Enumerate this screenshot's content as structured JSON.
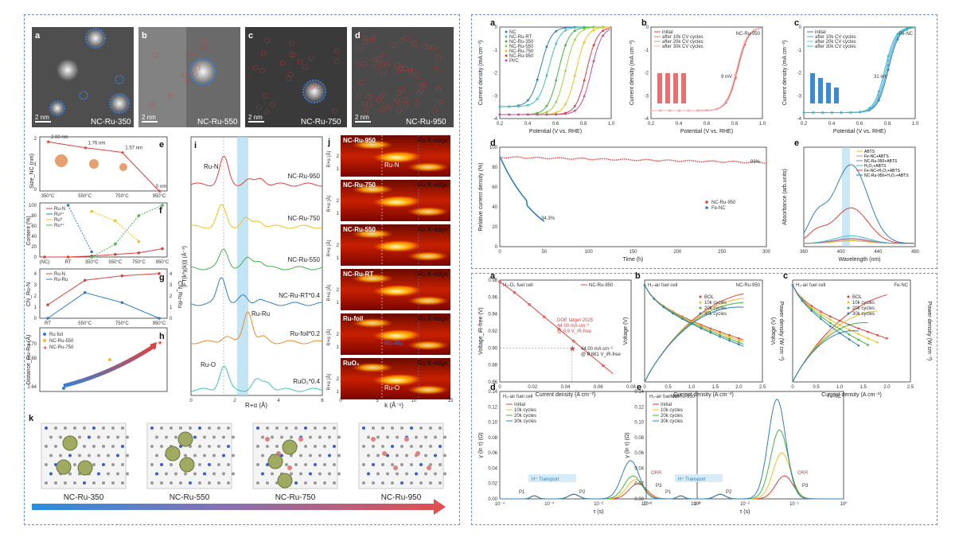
{
  "left": {
    "tem": [
      {
        "letter": "a",
        "label": "NC-Ru-350",
        "scale": "2 nm"
      },
      {
        "letter": "b",
        "label": "NC-Ru-550",
        "scale": "2 nm"
      },
      {
        "letter": "c",
        "label": "NC-Ru-750",
        "scale": "2 nm"
      },
      {
        "letter": "d",
        "label": "NC-Ru-950",
        "scale": "2 nm"
      }
    ],
    "e": {
      "letter": "e",
      "ylabel": "Size_NC (nm)",
      "points": [
        {
          "x": "350°C",
          "v": 2.0,
          "label": "2.00 nm"
        },
        {
          "x": "550°C",
          "v": 1.76,
          "label": "1.76 nm"
        },
        {
          "x": "750°C",
          "v": 1.57,
          "label": "1.57 nm"
        },
        {
          "x": "950°C",
          "v": 0,
          "label": "0 nm"
        }
      ],
      "yticks": [
        "0",
        "1",
        "2"
      ]
    },
    "f": {
      "letter": "f",
      "ylabel": "Content (%)",
      "xticks": [
        "(NC)",
        "RT",
        "350°C",
        "550°C",
        "750°C",
        "950°C"
      ],
      "yticks": [
        "0",
        "20",
        "40",
        "60",
        "80",
        "100"
      ],
      "legend": [
        "Ru-N",
        "Ru³⁺",
        "Ru⁰",
        "Ru⁴⁺"
      ],
      "series": [
        {
          "name": "Ru-N",
          "color": "#e0403a",
          "values": [
            0,
            0,
            2,
            5,
            8,
            16
          ]
        },
        {
          "name": "Ru³⁺",
          "color": "#2f7fc1",
          "values": [
            null,
            100,
            10,
            null,
            null,
            null
          ]
        },
        {
          "name": "Ru⁰",
          "color": "#f0c020",
          "values": [
            null,
            null,
            88,
            70,
            30,
            null
          ]
        },
        {
          "name": "Ru⁴⁺",
          "color": "#44b34a",
          "values": [
            null,
            null,
            0,
            25,
            80,
            100
          ]
        }
      ]
    },
    "g": {
      "letter": "g",
      "ylabel": "CN_Ru-N",
      "ylabel2": "CN_Ru-Ru",
      "xticks": [
        "RT",
        "550°C",
        "750°C",
        "950°C"
      ],
      "yticks": [
        "0",
        "1",
        "2",
        "3",
        "4"
      ],
      "yticks2": [
        "0",
        "1",
        "2",
        "3",
        "4"
      ],
      "legend": [
        "Ru-N",
        "Ru-Ru"
      ],
      "series": [
        {
          "name": "Ru-N",
          "color": "#e0403a",
          "values": [
            1.2,
            3.4,
            3.8,
            4.0
          ]
        },
        {
          "name": "Ru-Ru",
          "color": "#2f7fc1",
          "values": [
            0,
            2.3,
            1.4,
            0
          ]
        }
      ]
    },
    "h": {
      "letter": "h",
      "ylabel": "Distance_Ru-Ru (Å)",
      "yticks": [
        "2.64",
        "2.68",
        "2.70"
      ],
      "legend": [
        "Ru foil",
        "NC-Ru-550",
        "NC-Ru-750"
      ]
    },
    "i": {
      "letter": "i",
      "xlabel": "R+α (Å)",
      "ylabel": "|FT(k³χ(k))| (Å⁻³)",
      "xticks": [
        "0",
        "2",
        "4",
        "6"
      ],
      "curves": [
        {
          "name": "NC-Ru-950",
          "color": "#e0403a"
        },
        {
          "name": "NC-Ru-750",
          "color": "#f0c020"
        },
        {
          "name": "NC-Ru-550",
          "color": "#44b34a"
        },
        {
          "name": "NC-Ru-RT*0.4",
          "color": "#2f7fc1"
        },
        {
          "name": "Ru-foil*0.2",
          "color": "#f08a20"
        },
        {
          "name": "RuO₂*0.4",
          "color": "#40c0c0"
        }
      ],
      "annotations": [
        "Ru-N",
        "Ru-Ru",
        "Ru-O"
      ]
    },
    "j": {
      "letter": "j",
      "xlabel": "k (Å⁻¹)",
      "ylabel": "R+α (Å)",
      "xticks": [
        "0",
        "5",
        "10",
        "15"
      ],
      "maps": [
        {
          "name": "NC-Ru-950",
          "edge": "Ru K-edge",
          "note": "Ru-N"
        },
        {
          "name": "NC-Ru-750",
          "edge": "Ru K-edge",
          "note": ""
        },
        {
          "name": "NC-Ru-550",
          "edge": "Ru K-edge",
          "note": ""
        },
        {
          "name": "NC-Ru-RT",
          "edge": "Ru K-edge",
          "note": ""
        },
        {
          "name": "Ru-foil",
          "edge": "Ru K-edge",
          "note": "Ru-Ru"
        },
        {
          "name": "RuO₂",
          "edge": "Ru K-edge",
          "note": "Ru-O"
        }
      ]
    },
    "k": {
      "letter": "k",
      "models": [
        "NC-Ru-350",
        "NC-Ru-550",
        "NC-Ru-750",
        "NC-Ru-950"
      ]
    }
  },
  "right_top": {
    "a": {
      "letter": "a",
      "xlabel": "Potential (V vs. RHE)",
      "ylabel": "Current density (mA cm⁻²)",
      "xticks": [
        "0.2",
        "0.4",
        "0.6",
        "0.8",
        "1.0"
      ],
      "yticks": [
        "0",
        "-1",
        "-2",
        "-3",
        "-4"
      ],
      "legend": [
        "NC",
        "NC-Ru-RT",
        "NC-Ru-350",
        "NC-Ru-550",
        "NC-Ru-750",
        "NC-Ru-950",
        "Pt/C"
      ],
      "colors": [
        "#2f7fc1",
        "#40c0c0",
        "#44b34a",
        "#a0d040",
        "#f0c020",
        "#e0403a",
        "#c050a0"
      ],
      "halfwaves": [
        0.45,
        0.52,
        0.6,
        0.66,
        0.75,
        0.84,
        0.88
      ]
    },
    "b": {
      "letter": "b",
      "tag": "NC-Ru-950",
      "xlabel": "Potential (V vs. RHE)",
      "ylabel": "Current density (mA cm⁻²)",
      "xticks": [
        "0.2",
        "0.4",
        "0.6",
        "0.8",
        "1.0"
      ],
      "yticks": [
        "0",
        "-1",
        "-2",
        "-3",
        "-4"
      ],
      "legend": [
        "initial",
        "after 10k CV cycles",
        "after 20k CV cycles",
        "after 30k CV cycles"
      ],
      "shift": "9 mV"
    },
    "c": {
      "letter": "c",
      "tag": "Fe-NC",
      "xlabel": "Potential (V vs. RHE)",
      "ylabel": "Current density (mA cm⁻²)",
      "xticks": [
        "0.2",
        "0.4",
        "0.6",
        "0.8",
        "1.0"
      ],
      "yticks": [
        "0",
        "-1",
        "-2",
        "-3",
        "-4"
      ],
      "legend": [
        "initial",
        "after 10k CV cycles",
        "after 20k CV cycles",
        "after 30k CV cycles"
      ],
      "shift": "31 mV"
    },
    "d": {
      "letter": "d",
      "xlabel": "Time (h)",
      "ylabel": "Relative current density (%)",
      "xticks": [
        "0",
        "50",
        "100",
        "150",
        "200",
        "250",
        "300"
      ],
      "yticks": [
        "0",
        "20",
        "40",
        "60",
        "80",
        "100"
      ],
      "legend": [
        "NC-Ru-950",
        "Fe-NC"
      ],
      "end1": "93%",
      "end2": "34.3%"
    },
    "e": {
      "letter": "e",
      "xlabel": "Wavelength (nm)",
      "ylabel": "Absorbance (arb.units)",
      "xticks": [
        "360",
        "400",
        "440",
        "480"
      ],
      "legend": [
        "ABTS",
        "Fe-NC+ABTS",
        "NC-Ru-950+ABTS",
        "H₂O₂+ABTS",
        "Fe-NC+H₂O₂+ABTS",
        "NC-Ru-950+H₂O₂+ABTS"
      ]
    }
  },
  "right_bottom": {
    "a": {
      "letter": "a",
      "title": "H₂-O₂ fuel cell",
      "legend": "NC-Ru-950",
      "xlabel": "Current density (A cm⁻²)",
      "ylabel": "Voltage_iR-free (V)",
      "xticks": [
        "0",
        "0.02",
        "0.04",
        "0.06",
        "0.08"
      ],
      "yticks": [
        "0.86",
        "0.88",
        "0.90",
        "0.92",
        "0.94",
        "0.96",
        "0.98"
      ],
      "doe": [
        "DOE target 2025",
        "44.00 mA cm⁻²",
        "@ 0.9 V_iR-free"
      ],
      "meas": [
        "44.00 mA cm⁻²",
        "@ 0.881 V_iR-free"
      ]
    },
    "b": {
      "letter": "b",
      "title": "H₂-air fuel cell",
      "tag": "NC-Ru-950",
      "xlabel": "Current density (A cm⁻²)",
      "ylabel": "Voltage (V)",
      "ylabel2": "Power density (W cm⁻²)",
      "xticks": [
        "0",
        "0.5",
        "1.0",
        "1.5",
        "2.0",
        "2.5"
      ],
      "legend": [
        "BOL",
        "10k cycles",
        "20k cycles",
        "30k cycles"
      ]
    },
    "c": {
      "letter": "c",
      "title": "H₂-air fuel cell",
      "tag": "Fe-NC",
      "xlabel": "Current density (A cm⁻²)",
      "ylabel": "Voltage (V)",
      "ylabel2": "Power density (W cm⁻²)",
      "xticks": [
        "0",
        "0.5",
        "1.0",
        "1.5",
        "2.0",
        "2.5"
      ],
      "legend": [
        "BOL",
        "10k cycles",
        "20k cycles",
        "30k cycles"
      ]
    },
    "d": {
      "letter": "d",
      "title": "H₂-air fuel cell",
      "tag": "NC-Ru-950",
      "xlabel": "τ (s)",
      "ylabel": "γ (ln τ) (Ω)",
      "yticks": [
        "0.00",
        "0.02",
        "0.04",
        "0.06",
        "0.08",
        "0.10",
        "0.12",
        "0.14"
      ],
      "xticks": [
        "10⁻⁴",
        "10⁻³",
        "10⁻²",
        "10⁻¹",
        "10⁰"
      ],
      "legend": [
        "Initial",
        "10k cycles",
        "20k cycles",
        "30k cycles"
      ],
      "notes": [
        "P1",
        "P2",
        "P3",
        "H⁺ Transport",
        "ORR"
      ]
    },
    "e": {
      "letter": "e",
      "title": "H₂-air fuel cell",
      "tag": "Fe-NC",
      "xlabel": "τ (s)",
      "ylabel": "γ (ln τ) (Ω)",
      "yticks": [
        "0.00",
        "0.02",
        "0.04",
        "0.06",
        "0.08",
        "0.10",
        "0.12",
        "0.14"
      ],
      "xticks": [
        "10⁻⁴",
        "10⁻³",
        "10⁻²",
        "10⁻¹",
        "10⁰"
      ],
      "legend": [
        "Initial",
        "10k cycles",
        "20k cycles",
        "30k cycles"
      ],
      "notes": [
        "P1",
        "P2",
        "P3",
        "H⁺ Transport",
        "ORR"
      ]
    }
  }
}
